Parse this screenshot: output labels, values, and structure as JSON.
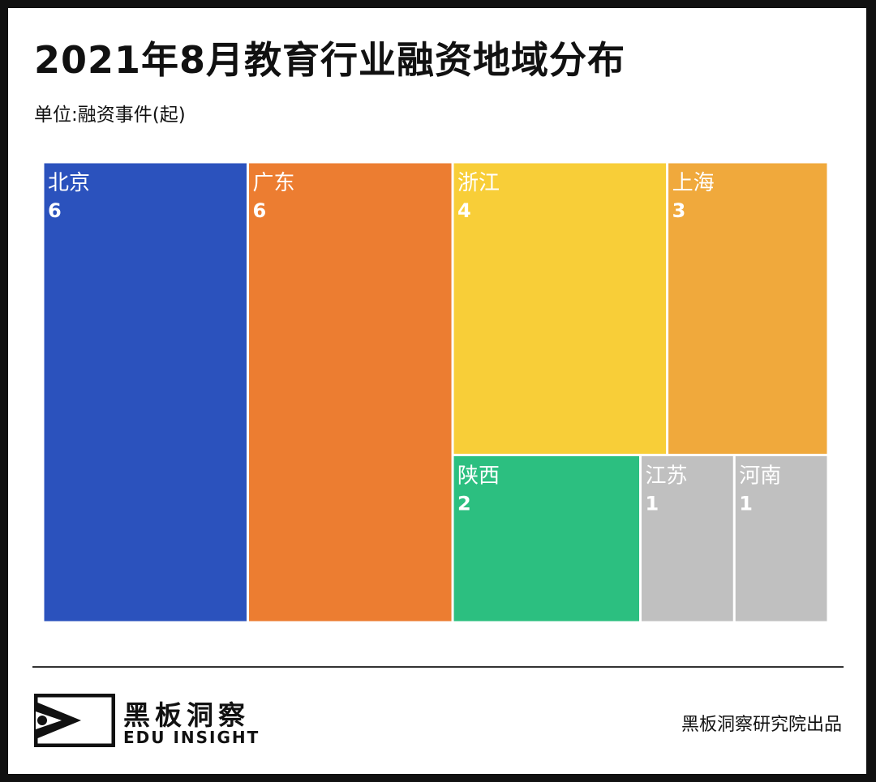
{
  "title": "2021年8月教育行业融资地域分布",
  "subtitle": "单位:融资事件(起)",
  "chart_data": {
    "type": "treemap",
    "title": "2021年8月教育行业融资地域分布",
    "unit": "单位:融资事件(起)",
    "items": [
      {
        "name": "北京",
        "value": 6,
        "color": "#2b52bd"
      },
      {
        "name": "广东",
        "value": 6,
        "color": "#ec7d31"
      },
      {
        "name": "浙江",
        "value": 4,
        "color": "#f8ce38"
      },
      {
        "name": "上海",
        "value": 3,
        "color": "#f0a93c"
      },
      {
        "name": "陕西",
        "value": 2,
        "color": "#2cbf80"
      },
      {
        "name": "江苏",
        "value": 1,
        "color": "#c0c0c0"
      },
      {
        "name": "河南",
        "value": 1,
        "color": "#c0c0c0"
      }
    ]
  },
  "footer": {
    "brand_cn": "黑板洞察",
    "brand_en": "EDU INSIGHT",
    "credit": "黑板洞察研究院出品"
  }
}
